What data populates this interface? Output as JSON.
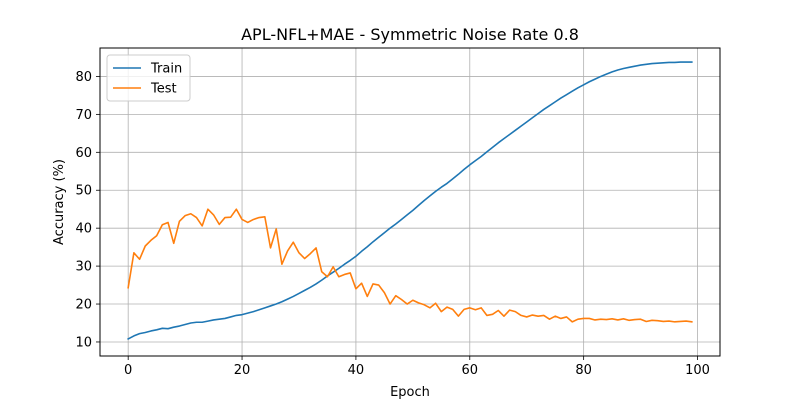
{
  "chart_data": {
    "type": "line",
    "title": "APL-NFL+MAE - Symmetric Noise Rate 0.8",
    "xlabel": "Epoch",
    "ylabel": "Accuracy (%)",
    "xlim": [
      -4.95,
      103.95
    ],
    "ylim": [
      6.3,
      87.5
    ],
    "xticks": [
      0,
      20,
      40,
      60,
      80,
      100
    ],
    "yticks": [
      10,
      20,
      30,
      40,
      50,
      60,
      70,
      80
    ],
    "grid": true,
    "legend_position": "top-left",
    "colors": {
      "Train": "#1f77b4",
      "Test": "#ff7f0e"
    },
    "series": [
      {
        "name": "Train",
        "x": [
          0,
          1,
          2,
          3,
          4,
          5,
          6,
          7,
          8,
          9,
          10,
          11,
          12,
          13,
          14,
          15,
          16,
          17,
          18,
          19,
          20,
          21,
          22,
          23,
          24,
          25,
          26,
          27,
          28,
          29,
          30,
          31,
          32,
          33,
          34,
          35,
          36,
          37,
          38,
          39,
          40,
          41,
          42,
          43,
          44,
          45,
          46,
          47,
          48,
          49,
          50,
          51,
          52,
          53,
          54,
          55,
          56,
          57,
          58,
          59,
          60,
          61,
          62,
          63,
          64,
          65,
          66,
          67,
          68,
          69,
          70,
          71,
          72,
          73,
          74,
          75,
          76,
          77,
          78,
          79,
          80,
          81,
          82,
          83,
          84,
          85,
          86,
          87,
          88,
          89,
          90,
          91,
          92,
          93,
          94,
          95,
          96,
          97,
          98,
          99
        ],
        "values": [
          10.8,
          11.6,
          12.2,
          12.5,
          12.9,
          13.2,
          13.6,
          13.5,
          13.9,
          14.2,
          14.6,
          15.0,
          15.2,
          15.2,
          15.5,
          15.8,
          16.0,
          16.2,
          16.6,
          17.0,
          17.2,
          17.6,
          18.0,
          18.5,
          19.0,
          19.5,
          20.0,
          20.6,
          21.3,
          22.0,
          22.8,
          23.6,
          24.4,
          25.3,
          26.3,
          27.4,
          28.4,
          29.4,
          30.5,
          31.5,
          32.6,
          33.9,
          35.1,
          36.4,
          37.6,
          38.8,
          40.0,
          41.1,
          42.3,
          43.5,
          44.7,
          46.0,
          47.3,
          48.5,
          49.7,
          50.8,
          51.8,
          53.0,
          54.2,
          55.5,
          56.7,
          57.8,
          58.9,
          60.1,
          61.3,
          62.5,
          63.6,
          64.7,
          65.8,
          66.9,
          68.0,
          69.1,
          70.2,
          71.3,
          72.3,
          73.3,
          74.3,
          75.2,
          76.1,
          77.0,
          77.8,
          78.6,
          79.3,
          80.0,
          80.6,
          81.2,
          81.7,
          82.1,
          82.4,
          82.7,
          83.0,
          83.2,
          83.4,
          83.5,
          83.6,
          83.7,
          83.7,
          83.8,
          83.8,
          83.8
        ]
      },
      {
        "name": "Test",
        "x": [
          0,
          1,
          2,
          3,
          4,
          5,
          6,
          7,
          8,
          9,
          10,
          11,
          12,
          13,
          14,
          15,
          16,
          17,
          18,
          19,
          20,
          21,
          22,
          23,
          24,
          25,
          26,
          27,
          28,
          29,
          30,
          31,
          32,
          33,
          34,
          35,
          36,
          37,
          38,
          39,
          40,
          41,
          42,
          43,
          44,
          45,
          46,
          47,
          48,
          49,
          50,
          51,
          52,
          53,
          54,
          55,
          56,
          57,
          58,
          59,
          60,
          61,
          62,
          63,
          64,
          65,
          66,
          67,
          68,
          69,
          70,
          71,
          72,
          73,
          74,
          75,
          76,
          77,
          78,
          79,
          80,
          81,
          82,
          83,
          84,
          85,
          86,
          87,
          88,
          89,
          90,
          91,
          92,
          93,
          94,
          95,
          96,
          97,
          98,
          99
        ],
        "values": [
          24.3,
          33.5,
          31.8,
          35.3,
          36.8,
          38.0,
          40.9,
          41.5,
          36.0,
          41.8,
          43.3,
          43.8,
          42.8,
          40.6,
          45.0,
          43.5,
          41.0,
          42.8,
          42.9,
          45.0,
          42.3,
          41.5,
          42.3,
          42.8,
          43.0,
          34.8,
          39.8,
          30.5,
          34.0,
          36.3,
          33.5,
          32.0,
          33.3,
          34.8,
          28.5,
          27.2,
          29.8,
          27.2,
          27.8,
          28.2,
          24.0,
          25.5,
          22.0,
          25.3,
          25.0,
          23.0,
          20.0,
          22.2,
          21.2,
          20.0,
          21.0,
          20.3,
          19.8,
          19.0,
          20.2,
          18.0,
          19.2,
          18.6,
          16.8,
          18.6,
          19.0,
          18.5,
          19.0,
          17.0,
          17.3,
          18.3,
          16.8,
          18.4,
          18.0,
          17.0,
          16.6,
          17.1,
          16.8,
          17.0,
          16.0,
          16.8,
          16.2,
          16.6,
          15.3,
          16.0,
          16.2,
          16.2,
          15.8,
          16.0,
          15.9,
          16.1,
          15.8,
          16.1,
          15.7,
          15.9,
          16.0,
          15.4,
          15.7,
          15.6,
          15.4,
          15.5,
          15.3,
          15.4,
          15.5,
          15.3
        ]
      }
    ]
  }
}
